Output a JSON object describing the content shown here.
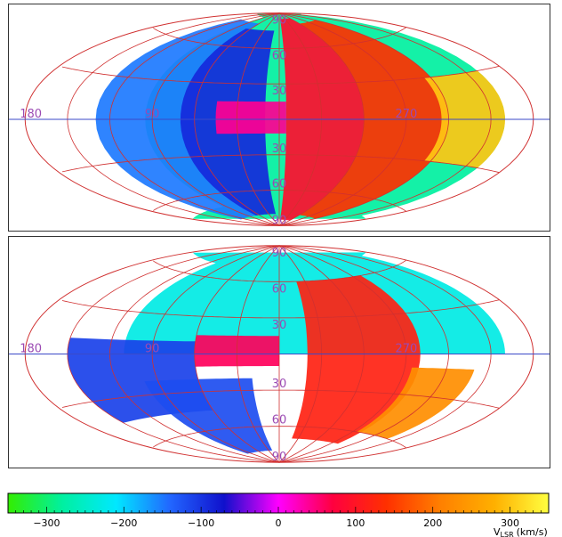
{
  "chart_data": [
    {
      "type": "heatmap",
      "projection": "aitoff",
      "grid": true,
      "longitude_labels": [
        "180",
        "90",
        "270"
      ],
      "latitude_labels": [
        "90",
        "60",
        "30",
        "30",
        "60",
        "90"
      ],
      "lon_line_color": "#3b49c8",
      "grid_color": "#d03030",
      "regions": [
        {
          "lon": [
            200,
            95
          ],
          "lat": [
            -70,
            85
          ],
          "v": -280
        },
        {
          "lon": [
            130,
            60
          ],
          "lat": [
            -80,
            80
          ],
          "v": -150
        },
        {
          "lon": [
            70,
            10
          ],
          "lat": [
            -80,
            75
          ],
          "v": -90
        },
        {
          "lon": [
            45,
            -5
          ],
          "lat": [
            -12,
            15
          ],
          "v": 40
        },
        {
          "lon": [
            355,
            300
          ],
          "lat": [
            -85,
            85
          ],
          "v": 90
        },
        {
          "lon": [
            300,
            240
          ],
          "lat": [
            -80,
            80
          ],
          "v": 140
        },
        {
          "lon": [
            245,
            200
          ],
          "lat": [
            -30,
            30
          ],
          "v": 300
        }
      ]
    },
    {
      "type": "heatmap",
      "projection": "aitoff",
      "grid": true,
      "longitude_labels": [
        "180",
        "90",
        "270"
      ],
      "latitude_labels": [
        "90",
        "60",
        "30",
        "30",
        "60",
        "90"
      ],
      "lon_line_color": "#3b49c8",
      "grid_color": "#d03030",
      "regions": [
        {
          "lon": [
            200,
            110
          ],
          "lat": [
            0,
            70
          ],
          "v": -230
        },
        {
          "lon": [
            150,
            60
          ],
          "lat": [
            -45,
            10
          ],
          "v": -110
        },
        {
          "lon": [
            60,
            0
          ],
          "lat": [
            -10,
            15
          ],
          "v": 60
        },
        {
          "lon": [
            100,
            20
          ],
          "lat": [
            -80,
            -20
          ],
          "v": -120
        },
        {
          "lon": [
            340,
            260
          ],
          "lat": [
            -70,
            60
          ],
          "v": 120
        },
        {
          "lon": [
            265,
            220
          ],
          "lat": [
            -60,
            -10
          ],
          "v": 230
        }
      ]
    }
  ],
  "colorbar": {
    "ticks": [
      -300,
      -200,
      -100,
      0,
      100,
      200,
      300
    ],
    "tick_labels": [
      "−300",
      "−200",
      "−100",
      "0",
      "100",
      "200",
      "300"
    ],
    "range": [
      -350,
      350
    ],
    "label": "V",
    "label_sub": "LSR",
    "label_units": "(km/s)",
    "stops": [
      "#33ee00",
      "#00f0a0",
      "#00e8ff",
      "#2266ff",
      "#1010cc",
      "#ff00ff",
      "#ff0040",
      "#ff3000",
      "#ff8000",
      "#ffb000",
      "#ffff40"
    ]
  }
}
